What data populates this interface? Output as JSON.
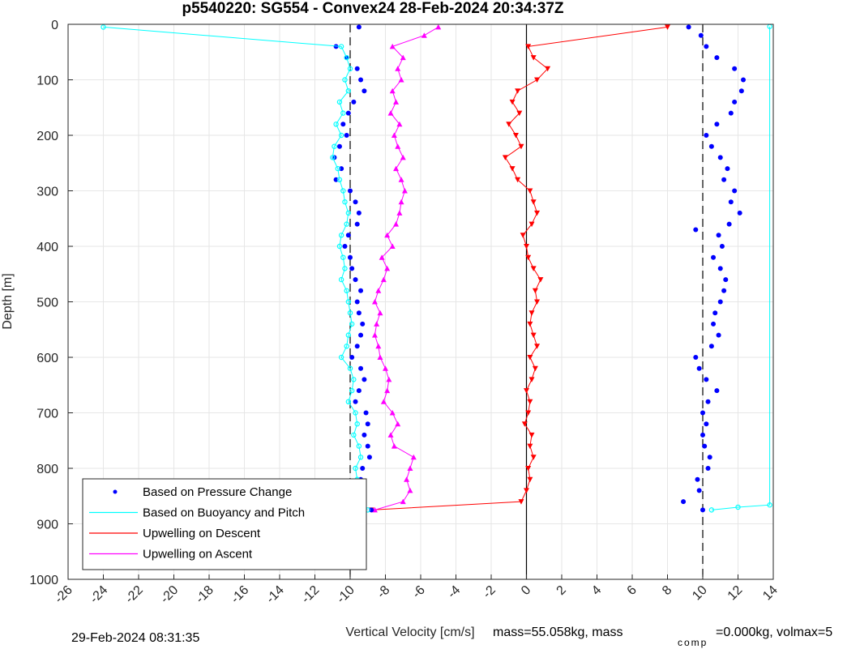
{
  "chart_data": {
    "type": "scatter",
    "title": "p5540220: SG554 - Convex24 28-Feb-2024 20:34:37Z",
    "xlabel": "Vertical Velocity [cm/s]",
    "ylabel": "Depth [m]",
    "xlim": [
      -26,
      14
    ],
    "ylim": [
      0,
      1000
    ],
    "y_reversed": true,
    "grid": true,
    "x_ticks": [
      -26,
      -24,
      -22,
      -20,
      -18,
      -16,
      -14,
      -12,
      -10,
      -8,
      -6,
      -4,
      -2,
      0,
      2,
      4,
      6,
      8,
      10,
      12,
      14
    ],
    "y_ticks": [
      0,
      100,
      200,
      300,
      400,
      500,
      600,
      700,
      800,
      900,
      1000
    ],
    "reference_lines": [
      {
        "x": -10,
        "style": "dashed"
      },
      {
        "x": 0,
        "style": "solid"
      },
      {
        "x": 10,
        "style": "dashed"
      }
    ],
    "legend_position": "bottom-left",
    "series": [
      {
        "name": "Based on Pressure Change",
        "color": "#0000ff",
        "marker": "dot",
        "descent": {
          "depth": [
            5,
            40,
            60,
            80,
            100,
            120,
            140,
            160,
            180,
            200,
            220,
            240,
            260,
            280,
            300,
            320,
            340,
            360,
            380,
            400,
            420,
            440,
            460,
            480,
            500,
            520,
            540,
            560,
            580,
            600,
            620,
            640,
            660,
            680,
            700,
            720,
            740,
            760,
            780,
            800,
            820,
            840,
            860,
            875
          ],
          "velocity": [
            -9.5,
            -10.8,
            -10.2,
            -9.6,
            -9.4,
            -9.2,
            -9.8,
            -10.1,
            -10.4,
            -10.2,
            -10.6,
            -10.9,
            -10.5,
            -10.8,
            -10.0,
            -9.7,
            -9.5,
            -9.6,
            -10.1,
            -10.3,
            -10.0,
            -9.9,
            -9.7,
            -9.4,
            -9.6,
            -9.5,
            -9.3,
            -9.4,
            -9.6,
            -9.9,
            -9.4,
            -9.2,
            -9.5,
            -9.7,
            -9.1,
            -9.0,
            -9.2,
            -9.0,
            -8.9,
            -9.3,
            -9.4,
            -9.6,
            -9.7,
            -8.8
          ]
        },
        "ascent": {
          "depth": [
            875,
            860,
            840,
            820,
            800,
            780,
            760,
            740,
            720,
            700,
            680,
            660,
            640,
            620,
            600,
            580,
            560,
            540,
            520,
            500,
            480,
            460,
            440,
            420,
            400,
            380,
            370,
            360,
            340,
            320,
            300,
            280,
            260,
            240,
            220,
            200,
            180,
            160,
            140,
            120,
            100,
            80,
            60,
            40,
            20,
            5
          ],
          "velocity": [
            10.0,
            8.9,
            9.8,
            9.7,
            10.3,
            10.4,
            10.1,
            10.0,
            10.2,
            10.0,
            10.3,
            10.8,
            10.2,
            9.8,
            9.6,
            10.5,
            10.9,
            10.6,
            10.7,
            11.0,
            11.2,
            11.3,
            11.0,
            10.6,
            11.1,
            10.9,
            9.6,
            11.5,
            12.1,
            11.6,
            11.8,
            11.2,
            11.4,
            11.0,
            10.5,
            10.2,
            10.8,
            11.6,
            11.8,
            12.2,
            12.3,
            11.8,
            10.8,
            10.2,
            9.9,
            9.2
          ]
        }
      },
      {
        "name": "Based on Buoyancy and Pitch",
        "color": "#00ffff",
        "marker": "circle",
        "descent": {
          "depth": [
            5,
            40,
            60,
            80,
            100,
            120,
            140,
            160,
            180,
            200,
            220,
            240,
            260,
            280,
            300,
            320,
            340,
            360,
            380,
            400,
            420,
            440,
            460,
            480,
            500,
            520,
            540,
            560,
            580,
            600,
            620,
            640,
            660,
            680,
            700,
            720,
            740,
            760,
            780,
            800,
            820,
            840,
            860,
            875
          ],
          "velocity": [
            -24.0,
            -10.5,
            -10.2,
            -10.0,
            -10.3,
            -10.1,
            -10.6,
            -10.4,
            -10.8,
            -10.5,
            -10.9,
            -11.0,
            -10.7,
            -10.6,
            -10.4,
            -10.3,
            -10.1,
            -10.2,
            -10.5,
            -10.6,
            -10.4,
            -10.3,
            -10.5,
            -10.2,
            -10.1,
            -10.0,
            -9.9,
            -10.1,
            -10.2,
            -10.5,
            -10.0,
            -9.8,
            -9.9,
            -10.1,
            -9.7,
            -9.6,
            -9.8,
            -9.5,
            -9.4,
            -9.7,
            -9.6,
            -9.8,
            -9.9,
            -9.0
          ]
        },
        "ascent": {
          "depth": [
            875,
            870,
            866,
            4
          ],
          "velocity": [
            10.5,
            12.0,
            13.8,
            13.8
          ]
        }
      }
    ],
    "upwelling": [
      {
        "name": "Upwelling on Descent",
        "color": "#ff0000",
        "marker": "triangle-down",
        "depth": [
          5,
          40,
          60,
          80,
          100,
          120,
          140,
          160,
          180,
          200,
          220,
          240,
          260,
          280,
          300,
          320,
          340,
          360,
          380,
          400,
          420,
          440,
          460,
          480,
          500,
          520,
          540,
          560,
          580,
          600,
          620,
          640,
          660,
          680,
          700,
          720,
          740,
          760,
          780,
          800,
          820,
          840,
          860,
          875
        ],
        "velocity": [
          8.0,
          0.1,
          0.4,
          1.2,
          0.6,
          -0.5,
          -0.8,
          -0.4,
          -1.0,
          -0.6,
          -0.3,
          -1.2,
          -0.8,
          -0.5,
          0.2,
          0.4,
          0.6,
          0.3,
          -0.2,
          0.0,
          0.1,
          0.4,
          0.8,
          0.5,
          0.6,
          0.3,
          0.2,
          0.4,
          0.6,
          0.2,
          0.5,
          0.3,
          0.0,
          0.2,
          0.1,
          -0.1,
          0.3,
          0.2,
          0.4,
          0.1,
          0.2,
          0.0,
          -0.3,
          -8.8
        ]
      },
      {
        "name": "Upwelling on Ascent",
        "color": "#ff00ff",
        "marker": "triangle-up",
        "depth": [
          875,
          860,
          840,
          820,
          800,
          780,
          760,
          740,
          720,
          700,
          680,
          660,
          640,
          620,
          600,
          580,
          560,
          540,
          520,
          500,
          480,
          460,
          440,
          420,
          400,
          380,
          360,
          340,
          320,
          300,
          280,
          260,
          240,
          220,
          200,
          180,
          160,
          140,
          120,
          100,
          80,
          60,
          40,
          20,
          5
        ],
        "velocity": [
          -8.6,
          -7.0,
          -6.6,
          -6.8,
          -6.6,
          -6.4,
          -7.5,
          -7.7,
          -7.3,
          -7.6,
          -8.1,
          -7.9,
          -7.8,
          -8.0,
          -8.3,
          -8.4,
          -8.6,
          -8.5,
          -8.3,
          -8.6,
          -8.4,
          -8.1,
          -7.9,
          -8.2,
          -7.6,
          -7.9,
          -7.4,
          -7.2,
          -7.1,
          -6.9,
          -7.1,
          -7.4,
          -7.0,
          -7.3,
          -7.5,
          -7.2,
          -7.7,
          -7.4,
          -7.6,
          -7.1,
          -7.3,
          -7.0,
          -7.6,
          -5.8,
          -5.0
        ]
      }
    ]
  },
  "legend": {
    "items": [
      {
        "label": "Based on Pressure Change",
        "color": "#0000ff",
        "kind": "dot"
      },
      {
        "label": "Based on Buoyancy and Pitch",
        "color": "#00ffff",
        "kind": "line"
      },
      {
        "label": "Upwelling on Descent",
        "color": "#ff0000",
        "kind": "line"
      },
      {
        "label": "Upwelling on Ascent",
        "color": "#ff00ff",
        "kind": "line"
      }
    ]
  },
  "footer": {
    "timestamp": "29-Feb-2024 08:31:35",
    "mass_text": "mass=55.058kg, mass",
    "comp_subscript": "comp",
    "rest_text": "=0.000kg, volmax=5"
  }
}
